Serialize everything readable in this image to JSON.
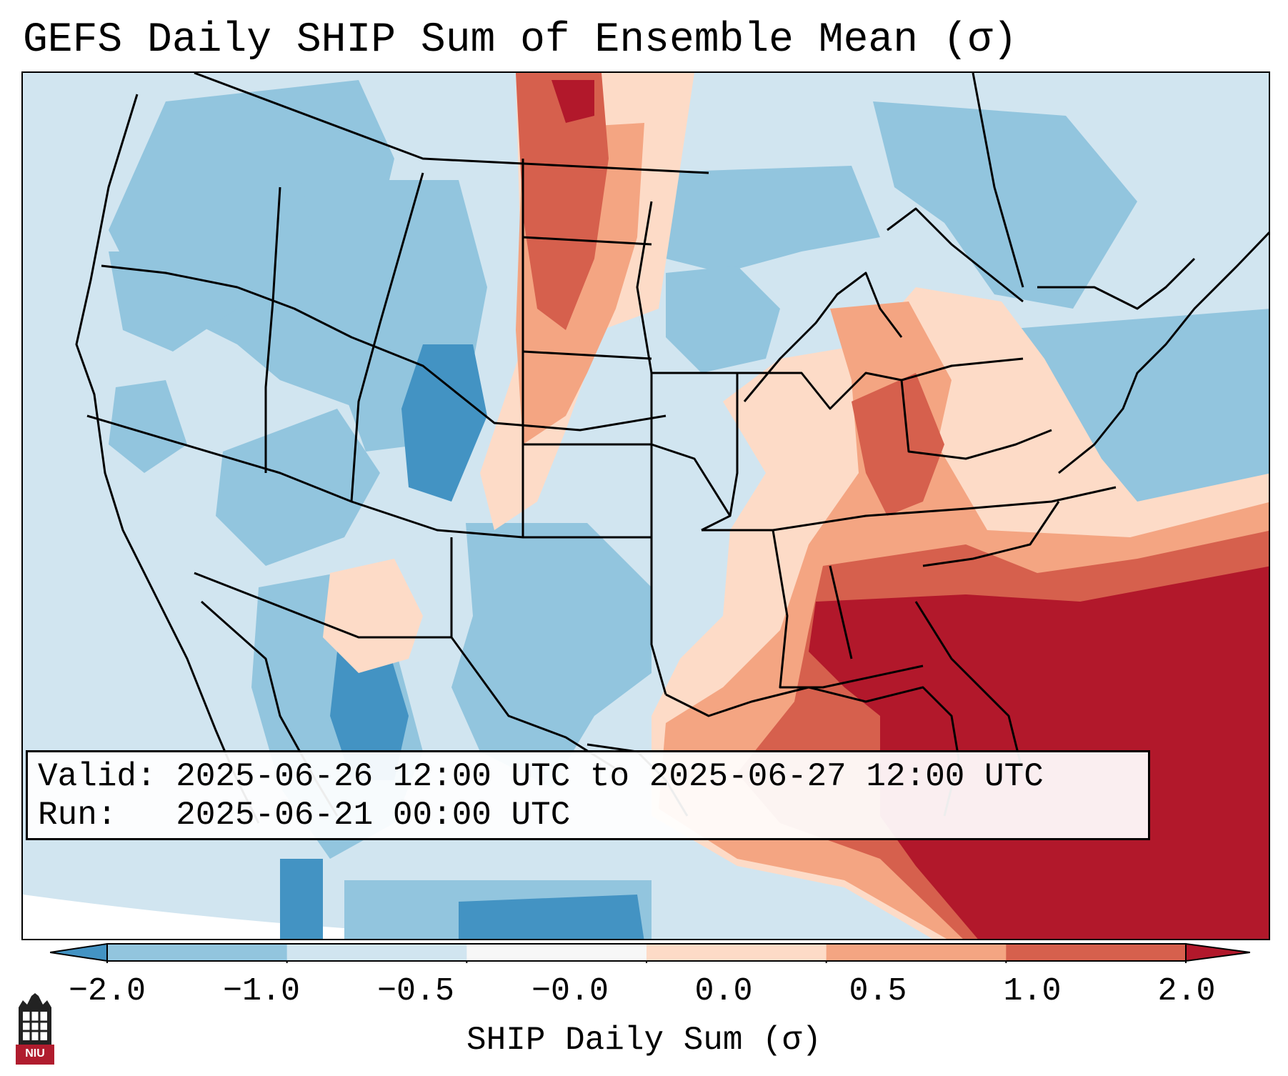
{
  "title": "GEFS Daily SHIP Sum of Ensemble Mean (σ)",
  "info": {
    "valid_line": "Valid: 2025-06-26 12:00 UTC to 2025-06-27 12:00 UTC",
    "run_line": "Run:   2025-06-21 00:00 UTC"
  },
  "colorbar": {
    "label": "SHIP Daily Sum (σ)",
    "ticks": [
      "−2.0",
      "−1.0",
      "−0.5",
      "−0.0",
      "0.0",
      "0.5",
      "1.0",
      "2.0"
    ],
    "colors": [
      "#4393c3",
      "#92c5de",
      "#d1e5f0",
      "#f7f7f7",
      "#fddbc7",
      "#f4a582",
      "#d6604d",
      "#b2182b"
    ],
    "extend": "both"
  },
  "logo": {
    "text": "NIU",
    "color": "#b01c2e"
  }
}
